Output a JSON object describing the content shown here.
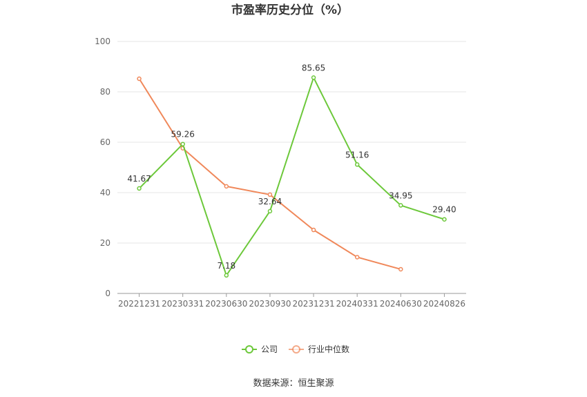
{
  "chart_data": {
    "type": "line",
    "title": "市盈率历史分位（%）",
    "xlabel": "",
    "ylabel": "",
    "ylim": [
      0,
      100
    ],
    "yticks": [
      0,
      20,
      40,
      60,
      80,
      100
    ],
    "grid": true,
    "legend_position": "bottom",
    "categories": [
      "20221231",
      "20230331",
      "20230630",
      "20230930",
      "20231231",
      "20240331",
      "20240630",
      "20240826"
    ],
    "series": [
      {
        "name": "公司",
        "color": "#6cc83a",
        "values": [
          41.67,
          59.26,
          7.18,
          32.64,
          85.65,
          51.16,
          34.95,
          29.4
        ],
        "labels": [
          "41.67",
          "59.26",
          "7.18",
          "32.64",
          "85.65",
          "51.16",
          "34.95",
          "29.40"
        ]
      },
      {
        "name": "行业中位数",
        "color": "#f0885a",
        "values": [
          85.2,
          57.6,
          42.5,
          39.2,
          25.2,
          14.4,
          9.6,
          null
        ]
      }
    ]
  },
  "source_text": "数据来源：恒生聚源"
}
